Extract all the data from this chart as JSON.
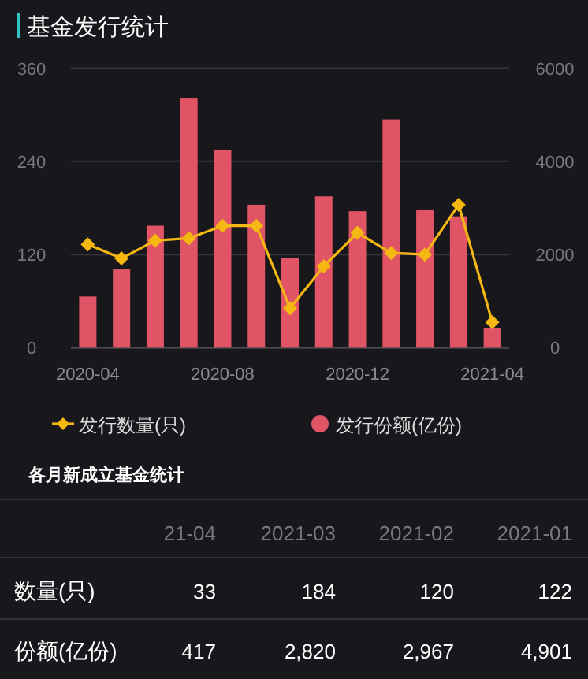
{
  "chart_data": {
    "type": "bar",
    "title": "基金发行统计",
    "categories": [
      "2020-04",
      null,
      null,
      null,
      "2020-08",
      null,
      null,
      null,
      "2020-12",
      null,
      null,
      null,
      "2021-04"
    ],
    "series": [
      {
        "name": "发行数量(只)",
        "type": "line",
        "color": "#f5b812",
        "marker": "diamond",
        "values": [
          133,
          115,
          138,
          141,
          157,
          157,
          51,
          105,
          148,
          122,
          120,
          184,
          33
        ]
      },
      {
        "name": "发行份额(亿份)",
        "axis": "y2",
        "color": "#e05465",
        "values": [
          1100,
          1680,
          2620,
          5350,
          4240,
          3070,
          1930,
          3250,
          2930,
          4901,
          2967,
          2820,
          417
        ]
      }
    ],
    "ylim": [
      0,
      360
    ],
    "yticks": [
      0,
      120,
      240,
      360
    ],
    "y2lim": [
      0,
      6000
    ],
    "y2ticks": [
      0,
      2000,
      4000,
      6000
    ],
    "grid": "y",
    "legend": "bottom",
    "annotations": [
      "各月新成立基金统计",
      "21-04",
      "2021-03",
      "2021-02",
      "2021-01",
      "数量(只)",
      "33",
      "184",
      "120",
      "122",
      "份额(亿份)",
      "417",
      "2,820",
      "2,967",
      "4,901"
    ]
  }
}
